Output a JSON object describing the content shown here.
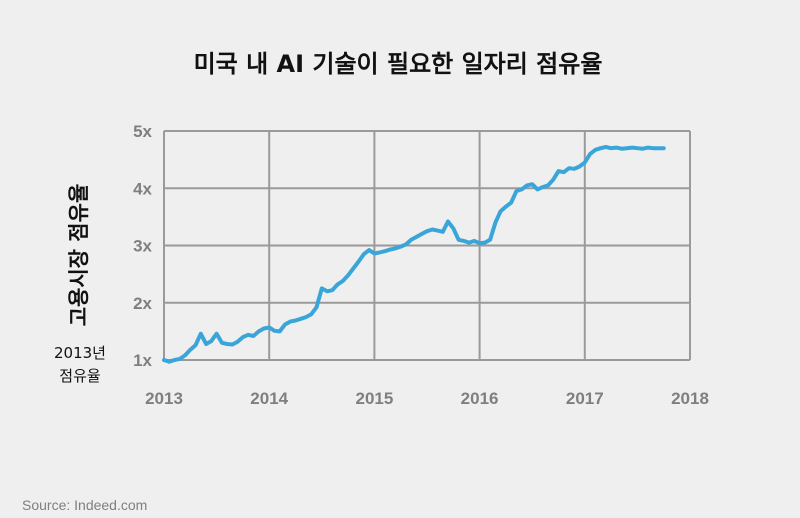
{
  "chart_data": {
    "type": "line",
    "title": "미국 내 AI 기술이 필요한 일자리 점유율",
    "xlabel": "",
    "ylabel": "고용시장 점유율",
    "xlim": [
      2013,
      2018
    ],
    "ylim": [
      1,
      5
    ],
    "x_ticks": [
      "2013",
      "2014",
      "2015",
      "2016",
      "2017",
      "2018"
    ],
    "y_ticks": [
      "1x",
      "2x",
      "3x",
      "4x",
      "5x"
    ],
    "grid": true,
    "baseline_note": [
      "2013년",
      "점유율"
    ],
    "source": "Source: Indeed.com",
    "line_color": "#3aa5d8",
    "series": [
      {
        "x": [
          2013.0,
          2013.05,
          2013.1,
          2013.15,
          2013.2,
          2013.25,
          2013.3,
          2013.35,
          2013.4,
          2013.45,
          2013.5,
          2013.55,
          2013.6,
          2013.65,
          2013.7,
          2013.75,
          2013.8,
          2013.85,
          2013.9,
          2013.95,
          2014.0,
          2014.05,
          2014.1,
          2014.15,
          2014.2,
          2014.25,
          2014.3,
          2014.35,
          2014.4,
          2014.45,
          2014.5,
          2014.55,
          2014.6,
          2014.65,
          2014.7,
          2014.75,
          2014.8,
          2014.85,
          2014.9,
          2014.95,
          2015.0,
          2015.05,
          2015.1,
          2015.15,
          2015.2,
          2015.25,
          2015.3,
          2015.35,
          2015.4,
          2015.45,
          2015.5,
          2015.55,
          2015.6,
          2015.65,
          2015.7,
          2015.75,
          2015.8,
          2015.85,
          2015.9,
          2015.95,
          2016.0,
          2016.05,
          2016.1,
          2016.15,
          2016.2,
          2016.25,
          2016.3,
          2016.35,
          2016.4,
          2016.45,
          2016.5,
          2016.55,
          2016.6,
          2016.65,
          2016.7,
          2016.75,
          2016.8,
          2016.85,
          2016.9,
          2016.95,
          2017.0,
          2017.05,
          2017.1,
          2017.15,
          2017.2,
          2017.25,
          2017.3,
          2017.35,
          2017.4,
          2017.45,
          2017.5,
          2017.55,
          2017.6,
          2017.65,
          2017.7,
          2017.75
        ],
        "values": [
          1.0,
          0.97,
          1.0,
          1.02,
          1.08,
          1.18,
          1.26,
          1.46,
          1.28,
          1.33,
          1.46,
          1.3,
          1.28,
          1.27,
          1.32,
          1.4,
          1.44,
          1.42,
          1.5,
          1.55,
          1.57,
          1.51,
          1.5,
          1.62,
          1.67,
          1.69,
          1.72,
          1.75,
          1.8,
          1.92,
          2.25,
          2.2,
          2.22,
          2.32,
          2.38,
          2.48,
          2.6,
          2.72,
          2.85,
          2.92,
          2.86,
          2.88,
          2.9,
          2.93,
          2.95,
          2.98,
          3.02,
          3.1,
          3.15,
          3.2,
          3.25,
          3.28,
          3.26,
          3.24,
          3.42,
          3.3,
          3.1,
          3.08,
          3.05,
          3.08,
          3.04,
          3.05,
          3.1,
          3.4,
          3.6,
          3.68,
          3.75,
          3.95,
          3.98,
          4.05,
          4.07,
          3.98,
          4.02,
          4.05,
          4.15,
          4.3,
          4.28,
          4.35,
          4.34,
          4.38,
          4.45,
          4.6,
          4.67,
          4.7,
          4.72,
          4.7,
          4.71,
          4.69,
          4.7,
          4.71,
          4.7,
          4.69,
          4.71,
          4.7,
          4.7,
          4.7
        ]
      }
    ]
  }
}
